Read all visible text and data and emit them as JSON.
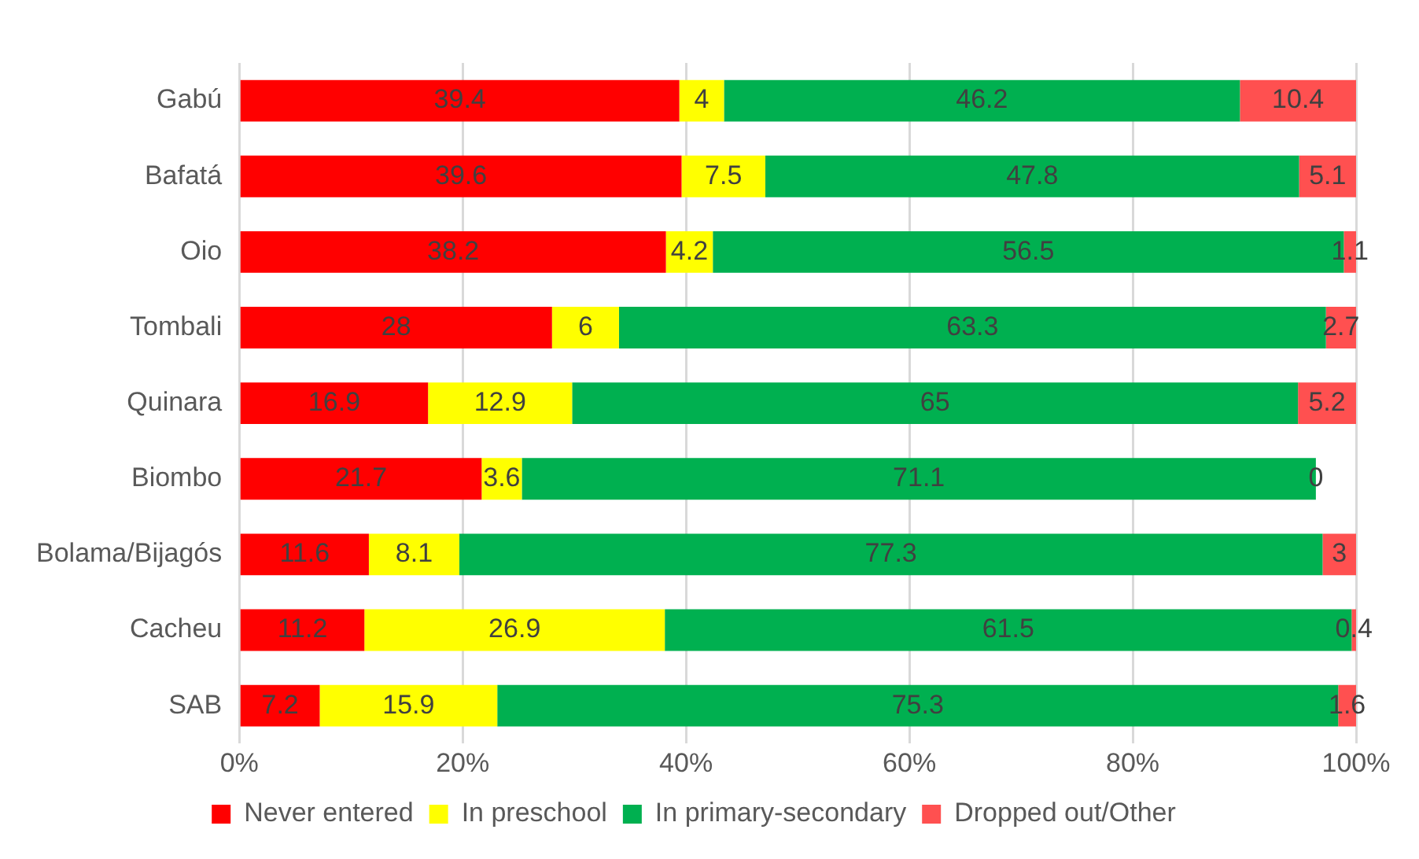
{
  "chart_data": {
    "type": "bar",
    "orientation": "horizontal",
    "stacked": true,
    "categories": [
      "Gabú",
      "Bafatá",
      "Oio",
      "Tombali",
      "Quinara",
      "Biombo",
      "Bolama/Bijagós",
      "Cacheu",
      "SAB"
    ],
    "series": [
      {
        "name": "Never entered",
        "color": "#ff0000",
        "values": [
          39.4,
          39.6,
          38.2,
          28,
          16.9,
          21.7,
          11.6,
          11.2,
          7.2
        ]
      },
      {
        "name": "In preschool",
        "color": "#ffff00",
        "values": [
          4,
          7.5,
          4.2,
          6,
          12.9,
          3.6,
          8.1,
          26.9,
          15.9
        ]
      },
      {
        "name": "In primary-secondary",
        "color": "#00b050",
        "values": [
          46.2,
          47.8,
          56.5,
          63.3,
          65,
          71.1,
          77.3,
          61.5,
          75.3
        ]
      },
      {
        "name": "Dropped out/Other",
        "color": "#ff5050",
        "values": [
          10.4,
          5.1,
          1.1,
          2.7,
          5.2,
          0,
          3,
          0.4,
          1.6
        ]
      }
    ],
    "xlim": [
      0,
      100
    ],
    "xticks": [
      {
        "value": 0,
        "label": "0%"
      },
      {
        "value": 20,
        "label": "20%"
      },
      {
        "value": 40,
        "label": "40%"
      },
      {
        "value": 60,
        "label": "60%"
      },
      {
        "value": 80,
        "label": "80%"
      },
      {
        "value": 100,
        "label": "100%"
      }
    ],
    "grid": "x",
    "legend": "bottom",
    "data_labels": true
  }
}
